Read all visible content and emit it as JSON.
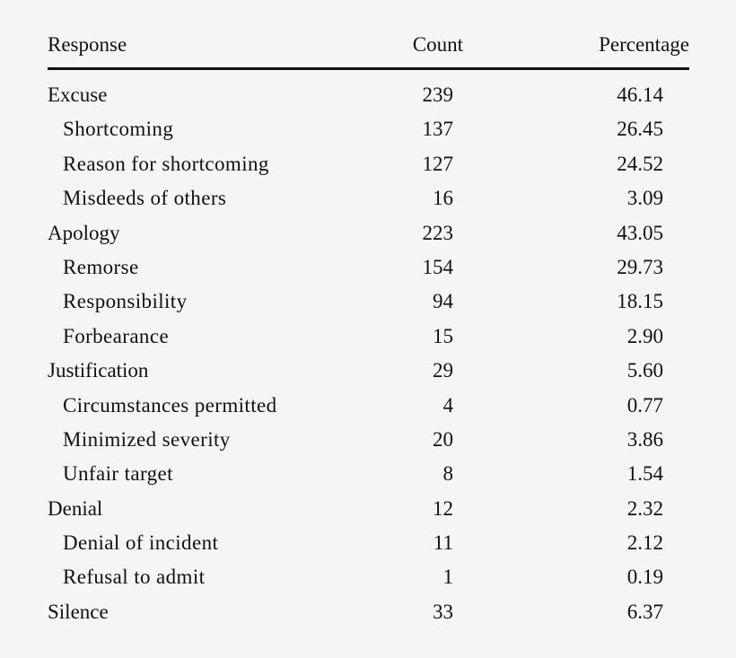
{
  "header": {
    "response": "Response",
    "count": "Count",
    "percentage": "Percentage"
  },
  "rows": [
    {
      "label": "Excuse",
      "count": "239",
      "percentage": "46.14",
      "level": 0
    },
    {
      "label": "Shortcoming",
      "count": "137",
      "percentage": "26.45",
      "level": 1
    },
    {
      "label": "Reason for shortcoming",
      "count": "127",
      "percentage": "24.52",
      "level": 1
    },
    {
      "label": "Misdeeds of others",
      "count": "16",
      "percentage": "3.09",
      "level": 1
    },
    {
      "label": "Apology",
      "count": "223",
      "percentage": "43.05",
      "level": 0
    },
    {
      "label": "Remorse",
      "count": "154",
      "percentage": "29.73",
      "level": 1
    },
    {
      "label": "Responsibility",
      "count": "94",
      "percentage": "18.15",
      "level": 1
    },
    {
      "label": "Forbearance",
      "count": "15",
      "percentage": "2.90",
      "level": 1
    },
    {
      "label": "Justification",
      "count": "29",
      "percentage": "5.60",
      "level": 0
    },
    {
      "label": "Circumstances permitted",
      "count": "4",
      "percentage": "0.77",
      "level": 1
    },
    {
      "label": "Minimized severity",
      "count": "20",
      "percentage": "3.86",
      "level": 1
    },
    {
      "label": "Unfair target",
      "count": "8",
      "percentage": "1.54",
      "level": 1
    },
    {
      "label": "Denial",
      "count": "12",
      "percentage": "2.32",
      "level": 0
    },
    {
      "label": "Denial of incident",
      "count": "11",
      "percentage": "2.12",
      "level": 1
    },
    {
      "label": "Refusal to admit",
      "count": "1",
      "percentage": "0.19",
      "level": 1
    },
    {
      "label": "Silence",
      "count": "33",
      "percentage": "6.37",
      "level": 0
    }
  ]
}
